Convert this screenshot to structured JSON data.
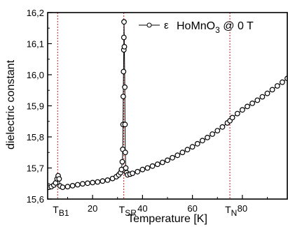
{
  "chart_data": {
    "type": "scatter",
    "xlabel": "Temperature [K]",
    "ylabel": "dielectric constant",
    "xlim": [
      2,
      98
    ],
    "ylim": [
      15.6,
      16.2
    ],
    "x_ticks": [
      20,
      40,
      60,
      80
    ],
    "x_tick_labels": [
      "20",
      "40",
      "60",
      "80"
    ],
    "y_ticks": [
      15.6,
      15.7,
      15.8,
      15.9,
      16.0,
      16.1,
      16.2
    ],
    "y_tick_labels": [
      "15,6",
      "15,7",
      "15,8",
      "15,9",
      "16,0",
      "16,1",
      "16,2"
    ],
    "legend": {
      "symbol_label": "ε",
      "text": "HoMnO",
      "subscript": "3",
      "suffix": " @ 0 T",
      "position": "top-right"
    },
    "grid": false,
    "transitions": [
      {
        "name": "T",
        "sub": "B1",
        "x": 6.0
      },
      {
        "name": "T",
        "sub": "SR",
        "x": 32.5
      },
      {
        "name": "T",
        "sub": "N",
        "x": 75.0
      }
    ],
    "transition_color": "#d01818",
    "series": [
      {
        "marker": "circle",
        "points": [
          [
            2.5,
            15.638
          ],
          [
            3.5,
            15.64
          ],
          [
            4.5,
            15.645
          ],
          [
            5.2,
            15.652
          ],
          [
            5.8,
            15.665
          ],
          [
            6.2,
            15.675
          ],
          [
            6.6,
            15.665
          ],
          [
            7.0,
            15.642
          ],
          [
            8,
            15.638
          ],
          [
            10,
            15.64
          ],
          [
            12,
            15.643
          ],
          [
            14,
            15.646
          ],
          [
            16,
            15.649
          ],
          [
            18,
            15.651
          ],
          [
            20,
            15.653
          ],
          [
            22,
            15.655
          ],
          [
            24,
            15.658
          ],
          [
            26,
            15.661
          ],
          [
            28,
            15.666
          ],
          [
            29.5,
            15.672
          ],
          [
            30.5,
            15.678
          ],
          [
            31.2,
            15.685
          ],
          [
            31.6,
            15.695
          ],
          [
            31.9,
            15.72
          ],
          [
            32.1,
            15.76
          ],
          [
            32.2,
            15.84
          ],
          [
            32.3,
            15.93
          ],
          [
            32.4,
            16.01
          ],
          [
            32.5,
            16.08
          ],
          [
            32.55,
            16.12
          ],
          [
            32.6,
            16.17
          ],
          [
            32.75,
            16.09
          ],
          [
            32.9,
            15.96
          ],
          [
            33.0,
            15.84
          ],
          [
            33.1,
            15.75
          ],
          [
            33.3,
            15.7
          ],
          [
            33.6,
            15.685
          ],
          [
            34,
            15.678
          ],
          [
            35,
            15.68
          ],
          [
            36,
            15.683
          ],
          [
            38,
            15.688
          ],
          [
            40,
            15.695
          ],
          [
            42,
            15.7
          ],
          [
            44,
            15.706
          ],
          [
            46,
            15.712
          ],
          [
            48,
            15.718
          ],
          [
            50,
            15.725
          ],
          [
            52,
            15.733
          ],
          [
            54,
            15.741
          ],
          [
            56,
            15.75
          ],
          [
            58,
            15.759
          ],
          [
            60,
            15.768
          ],
          [
            62,
            15.778
          ],
          [
            64,
            15.788
          ],
          [
            66,
            15.798
          ],
          [
            68,
            15.809
          ],
          [
            70,
            15.82
          ],
          [
            72,
            15.832
          ],
          [
            74,
            15.845
          ],
          [
            75,
            15.852
          ],
          [
            76,
            15.862
          ],
          [
            78,
            15.875
          ],
          [
            80,
            15.887
          ],
          [
            82,
            15.898
          ],
          [
            84,
            15.908
          ],
          [
            86,
            15.918
          ],
          [
            88,
            15.929
          ],
          [
            90,
            15.94
          ],
          [
            92,
            15.952
          ],
          [
            94,
            15.964
          ],
          [
            96,
            15.976
          ],
          [
            98,
            15.988
          ]
        ]
      }
    ]
  }
}
